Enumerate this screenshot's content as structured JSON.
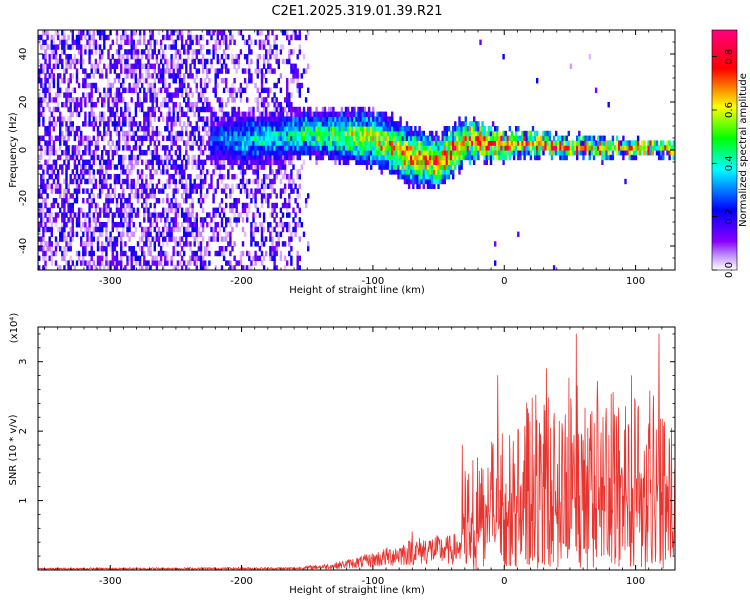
{
  "title": "C2E1.2025.319.01.39.R21",
  "chart_data": [
    {
      "type": "heatmap",
      "name": "spectrogram",
      "xlabel": "Height of straight line (km)",
      "ylabel": "Frequency (Hz)",
      "xlim": [
        -355,
        130
      ],
      "ylim": [
        -50,
        50
      ],
      "xticks": [
        -300,
        -200,
        -100,
        0,
        100
      ],
      "xtick_labels": [
        "-300",
        "-200",
        "-100",
        "0",
        "100"
      ],
      "yticks": [
        40,
        20,
        0,
        -20,
        -40
      ],
      "ytick_labels": [
        "40",
        "20",
        "0",
        "-20",
        "-40"
      ],
      "colorbar": {
        "label": "Normalized spectral amplitude",
        "range": [
          0,
          0.9
        ],
        "ticks": [
          0.0,
          0.2,
          0.4,
          0.6,
          0.8
        ],
        "tick_labels": [
          "0.0",
          "0.2",
          "0.4",
          "0.6",
          "0.8"
        ],
        "colormap": [
          "#ffffff",
          "#8a00ff",
          "#0000ff",
          "#00ffff",
          "#00ff00",
          "#ffff00",
          "#ff0000",
          "#ff0080"
        ]
      },
      "signal_track": {
        "description_points_km": [
          -230,
          -200,
          -150,
          -100,
          -75,
          -50,
          -30,
          0,
          20,
          60,
          100,
          130
        ],
        "center_freq_hz": [
          4,
          3,
          6,
          4,
          -3,
          -6,
          3,
          1,
          2,
          0,
          0,
          -1
        ],
        "halfwidth_hz": [
          10,
          12,
          10,
          12,
          12,
          11,
          9,
          6,
          5,
          4,
          3,
          3
        ]
      }
    },
    {
      "type": "line",
      "name": "snr",
      "xlabel": "Height of straight line (km)",
      "ylabel": "SNR (10 * v/v)",
      "yscale_label": "(x10⁴)",
      "xlim": [
        -355,
        130
      ],
      "ylim": [
        0,
        3.5
      ],
      "xticks": [
        -300,
        -200,
        -100,
        0,
        100
      ],
      "xtick_labels": [
        "-300",
        "-200",
        "-100",
        "0",
        "100"
      ],
      "yticks": [
        1,
        2,
        3
      ],
      "ytick_labels": [
        "1",
        "2",
        "3"
      ],
      "color": "#e8342f",
      "envelope": {
        "x": [
          -355,
          -160,
          -130,
          -100,
          -80,
          -60,
          -40,
          -32,
          -31,
          0,
          30,
          60,
          100,
          130
        ],
        "y": [
          0.03,
          0.04,
          0.1,
          0.25,
          0.4,
          0.5,
          0.5,
          0.6,
          1.4,
          2.0,
          2.6,
          2.7,
          2.6,
          2.2
        ]
      },
      "peaks": [
        {
          "x": 55,
          "y": 3.4
        },
        {
          "x": 118,
          "y": 3.4
        },
        {
          "x": 32,
          "y": 2.9
        },
        {
          "x": 97,
          "y": 2.8
        },
        {
          "x": -5,
          "y": 2.8
        },
        {
          "x": -32,
          "y": 1.8
        },
        {
          "x": -70,
          "y": 0.55
        }
      ]
    }
  ]
}
